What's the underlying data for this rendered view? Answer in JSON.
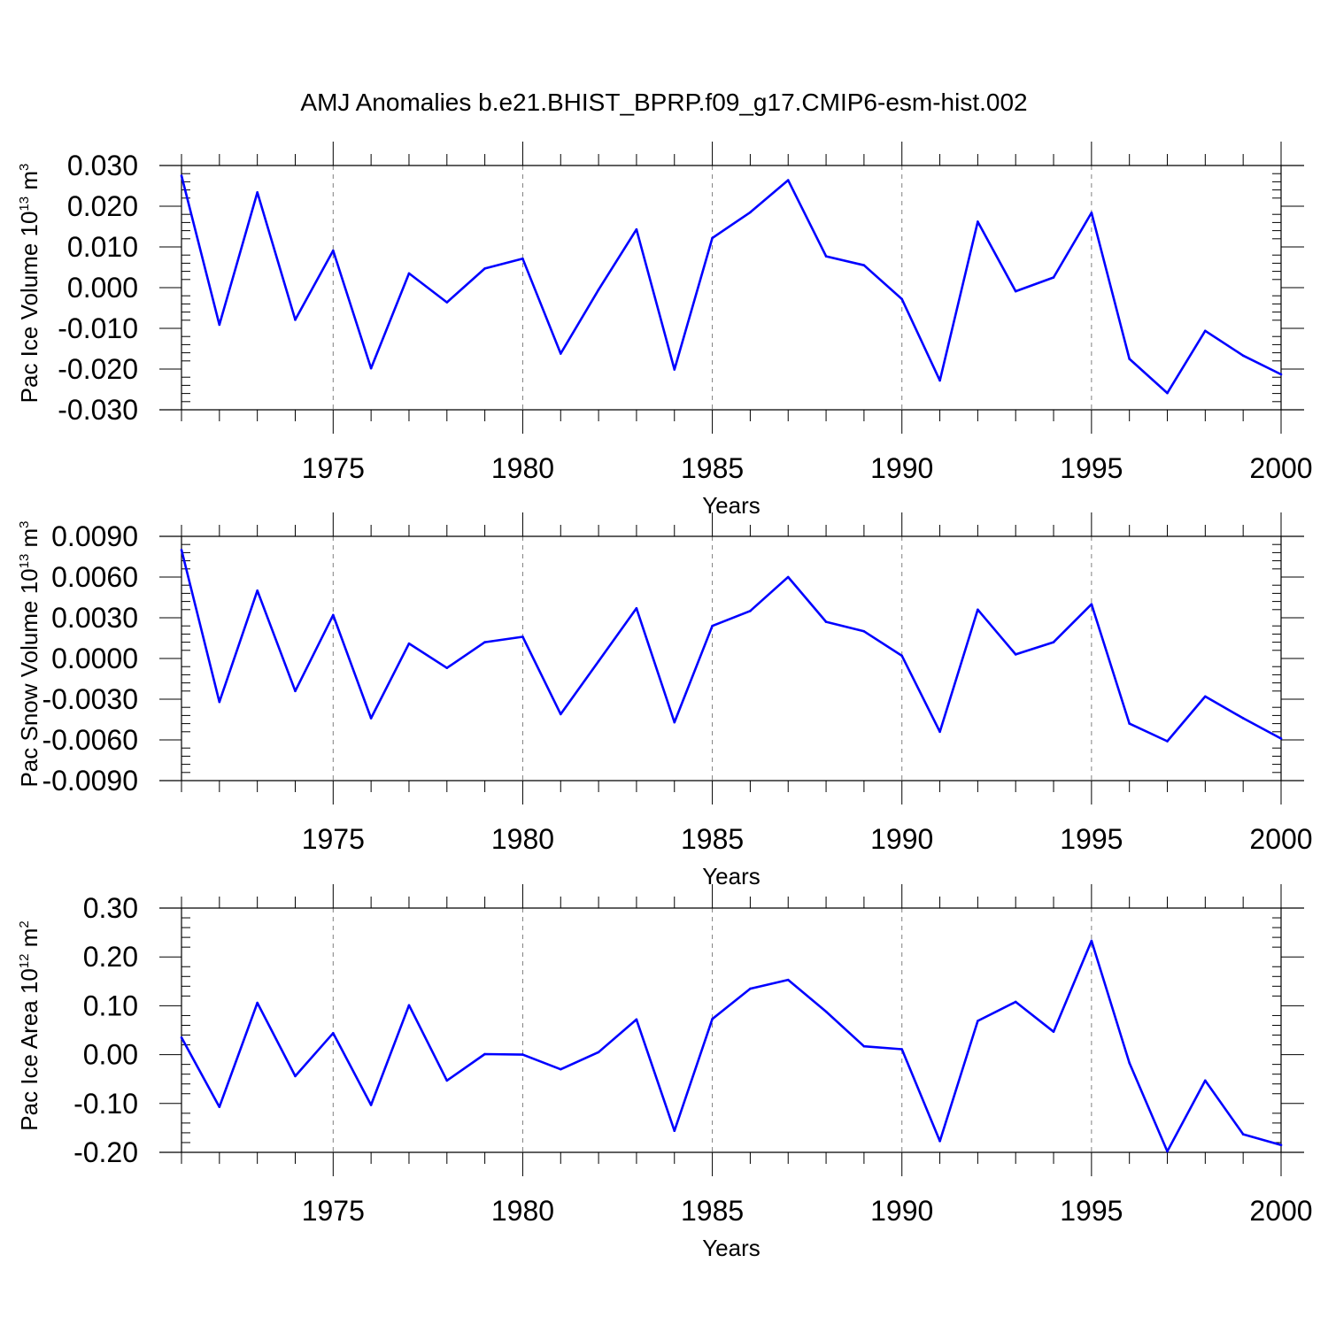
{
  "title": "AMJ Anomalies b.e21.BHIST_BPRP.f09_g17.CMIP6-esm-hist.002",
  "colors": {
    "line": "#0000ff",
    "axis": "#000000",
    "grid": "#808080"
  },
  "chart_data": [
    {
      "type": "line",
      "ylabel": {
        "text": "Pac Ice Volume 10",
        "exponent": "13",
        "unit": " m",
        "unit_exponent": "3"
      },
      "xlabel": "Years",
      "xlim": [
        1971,
        2000
      ],
      "ylim": [
        -0.03,
        0.03
      ],
      "yticks": [
        -0.03,
        -0.02,
        -0.01,
        0.0,
        0.01,
        0.02,
        0.03
      ],
      "ytick_labels": [
        "-0.030",
        "-0.020",
        "-0.010",
        "0.000",
        "0.010",
        "0.020",
        "0.030"
      ],
      "xticks": [
        1975,
        1980,
        1985,
        1990,
        1995,
        2000
      ],
      "xtick_labels": [
        "1975",
        "1980",
        "1985",
        "1990",
        "1995",
        "2000"
      ],
      "x": [
        1971,
        1972,
        1973,
        1974,
        1975,
        1976,
        1977,
        1978,
        1979,
        1980,
        1981,
        1982,
        1983,
        1984,
        1985,
        1986,
        1987,
        1988,
        1989,
        1990,
        1991,
        1992,
        1993,
        1994,
        1995,
        1996,
        1997,
        1998,
        1999,
        2000
      ],
      "series": [
        {
          "name": "Pac Ice Volume",
          "values": [
            0.0275,
            -0.0091,
            0.0234,
            -0.0079,
            0.0091,
            -0.0198,
            0.0035,
            -0.0036,
            0.0047,
            0.0071,
            -0.0162,
            -0.0005,
            0.0143,
            -0.0201,
            0.0122,
            0.0185,
            0.0264,
            0.0077,
            0.0055,
            -0.0028,
            -0.0228,
            0.0162,
            -0.0009,
            0.0025,
            0.0184,
            -0.0175,
            -0.0259,
            -0.0106,
            -0.0167,
            -0.0213
          ]
        }
      ]
    },
    {
      "type": "line",
      "ylabel": {
        "text": "Pac Snow Volume 10",
        "exponent": "13",
        "unit": " m",
        "unit_exponent": "3"
      },
      "xlabel": "Years",
      "xlim": [
        1971,
        2000
      ],
      "ylim": [
        -0.009,
        0.009
      ],
      "yticks": [
        -0.009,
        -0.006,
        -0.003,
        0.0,
        0.003,
        0.006,
        0.009
      ],
      "ytick_labels": [
        "-0.0090",
        "-0.0060",
        "-0.0030",
        "0.0000",
        "0.0030",
        "0.0060",
        "0.0090"
      ],
      "xticks": [
        1975,
        1980,
        1985,
        1990,
        1995,
        2000
      ],
      "xtick_labels": [
        "1975",
        "1980",
        "1985",
        "1990",
        "1995",
        "2000"
      ],
      "x": [
        1971,
        1972,
        1973,
        1974,
        1975,
        1976,
        1977,
        1978,
        1979,
        1980,
        1981,
        1982,
        1983,
        1984,
        1985,
        1986,
        1987,
        1988,
        1989,
        1990,
        1991,
        1992,
        1993,
        1994,
        1995,
        1996,
        1997,
        1998,
        1999,
        2000
      ],
      "series": [
        {
          "name": "Pac Snow Volume",
          "values": [
            0.008,
            -0.0032,
            0.005,
            -0.0024,
            0.0032,
            -0.0044,
            0.0011,
            -0.0007,
            0.0012,
            0.0016,
            -0.0041,
            -0.0002,
            0.0037,
            -0.0047,
            0.0024,
            0.0035,
            0.006,
            0.0027,
            0.002,
            0.0002,
            -0.0054,
            0.0036,
            0.0003,
            0.0012,
            0.004,
            -0.0048,
            -0.0061,
            -0.0028,
            -0.0044,
            -0.0059
          ]
        }
      ]
    },
    {
      "type": "line",
      "ylabel": {
        "text": "Pac Ice Area 10",
        "exponent": "12",
        "unit": " m",
        "unit_exponent": "2"
      },
      "xlabel": "Years",
      "xlim": [
        1971,
        2000
      ],
      "ylim": [
        -0.2,
        0.3
      ],
      "yticks": [
        -0.2,
        -0.1,
        0.0,
        0.1,
        0.2,
        0.3
      ],
      "ytick_labels": [
        "-0.20",
        "-0.10",
        "0.00",
        "0.10",
        "0.20",
        "0.30"
      ],
      "xticks": [
        1975,
        1980,
        1985,
        1990,
        1995,
        2000
      ],
      "xtick_labels": [
        "1975",
        "1980",
        "1985",
        "1990",
        "1995",
        "2000"
      ],
      "x": [
        1971,
        1972,
        1973,
        1974,
        1975,
        1976,
        1977,
        1978,
        1979,
        1980,
        1981,
        1982,
        1983,
        1984,
        1985,
        1986,
        1987,
        1988,
        1989,
        1990,
        1991,
        1992,
        1993,
        1994,
        1995,
        1996,
        1997,
        1998,
        1999,
        2000
      ],
      "series": [
        {
          "name": "Pac Ice Area",
          "values": [
            0.035,
            -0.107,
            0.106,
            -0.044,
            0.044,
            -0.103,
            0.101,
            -0.053,
            0.001,
            0.0,
            -0.03,
            0.005,
            0.072,
            -0.156,
            0.073,
            0.135,
            0.153,
            0.088,
            0.017,
            0.011,
            -0.177,
            0.069,
            0.108,
            0.047,
            0.233,
            -0.017,
            -0.198,
            -0.053,
            -0.163,
            -0.185
          ]
        }
      ]
    }
  ]
}
